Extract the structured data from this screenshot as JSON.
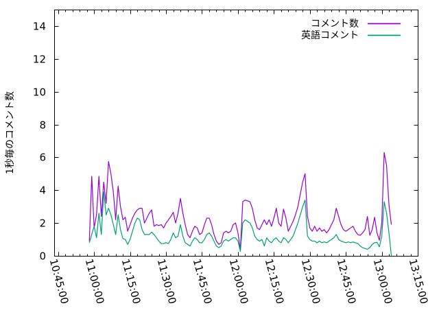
{
  "figure": {
    "background_color": "#ffffff",
    "axis_color": "#000000",
    "title": ""
  },
  "legend": {
    "position": "top-right-inside",
    "entries": [
      {
        "label": "コメント数",
        "color": "#9400d3"
      },
      {
        "label": "英語コメント",
        "color": "#009e73"
      }
    ]
  },
  "chart_data": {
    "type": "line",
    "title": "",
    "xlabel": "",
    "ylabel": "1秒毎のコメント数",
    "grid": false,
    "legend_position": "top-right-inside",
    "x_axis": {
      "range": [
        "10:43:20",
        "13:15:00"
      ],
      "tick_labels": [
        "10:45:00",
        "11:00:00",
        "11:15:00",
        "11:30:00",
        "11:45:00",
        "12:00:00",
        "12:15:00",
        "12:30:00",
        "12:45:00",
        "13:00:00",
        "13:15:00"
      ],
      "major_tick_interval_minutes": 15,
      "minor_tick_interval_minutes": 3,
      "labels_rotated_degrees": 75
    },
    "y_axis": {
      "range": [
        0,
        15
      ],
      "ticks": [
        0,
        2,
        4,
        6,
        8,
        10,
        12,
        14
      ]
    },
    "series": [
      {
        "name": "コメント数",
        "color": "#9400d3",
        "start_time": "10:58:00",
        "step_seconds": 60,
        "values": [
          0.9,
          4.85,
          1.7,
          2.5,
          4.85,
          2.4,
          4.5,
          3.2,
          5.75,
          5.0,
          3.9,
          2.2,
          4.25,
          3.0,
          2.2,
          2.35,
          1.5,
          1.9,
          2.3,
          2.6,
          2.8,
          2.9,
          2.9,
          2.0,
          2.3,
          2.6,
          2.8,
          1.8,
          1.9,
          1.85,
          1.9,
          1.7,
          2.0,
          2.2,
          2.4,
          2.65,
          2.0,
          2.6,
          3.5,
          2.6,
          1.9,
          1.3,
          1.1,
          1.5,
          1.8,
          1.7,
          1.3,
          1.4,
          1.9,
          2.3,
          2.3,
          1.9,
          1.3,
          0.9,
          0.7,
          0.8,
          1.4,
          1.5,
          1.4,
          1.5,
          1.9,
          2.0,
          1.4,
          0.38,
          3.3,
          3.4,
          3.35,
          3.3,
          2.9,
          2.2,
          1.7,
          1.6,
          1.9,
          2.2,
          1.9,
          2.2,
          1.8,
          2.3,
          2.9,
          2.0,
          1.8,
          2.85,
          2.3,
          1.5,
          1.8,
          2.1,
          2.5,
          3.0,
          3.75,
          4.5,
          5.0,
          2.4,
          1.7,
          1.5,
          1.8,
          1.5,
          1.7,
          1.5,
          1.6,
          1.4,
          1.6,
          1.9,
          2.2,
          2.9,
          2.4,
          1.9,
          1.6,
          1.5,
          1.6,
          1.7,
          1.8,
          1.5,
          1.3,
          1.25,
          1.4,
          1.6,
          2.4,
          1.25,
          1.6,
          2.35,
          1.4,
          0.95,
          2.0,
          6.3,
          5.5,
          3.1,
          1.9
        ]
      },
      {
        "name": "英語コメント",
        "color": "#009e73",
        "start_time": "10:58:00",
        "step_seconds": 60,
        "values": [
          0.8,
          1.3,
          1.8,
          1.1,
          2.6,
          1.3,
          3.9,
          2.5,
          2.9,
          2.5,
          1.9,
          1.3,
          2.5,
          1.6,
          1.05,
          1.0,
          0.7,
          1.0,
          1.5,
          2.0,
          2.3,
          2.2,
          1.6,
          1.3,
          1.3,
          1.3,
          1.45,
          1.3,
          1.1,
          0.9,
          0.75,
          0.75,
          0.8,
          0.75,
          1.0,
          1.4,
          1.1,
          1.2,
          1.9,
          1.2,
          0.8,
          0.7,
          0.6,
          0.9,
          1.1,
          1.0,
          0.8,
          0.8,
          1.0,
          1.3,
          1.4,
          1.2,
          0.9,
          0.6,
          0.5,
          0.6,
          0.9,
          1.0,
          0.9,
          1.0,
          1.1,
          1.1,
          0.9,
          0.27,
          2.0,
          2.2,
          2.1,
          2.0,
          1.7,
          1.2,
          1.0,
          0.9,
          1.0,
          0.6,
          1.1,
          0.9,
          0.8,
          1.0,
          1.1,
          0.9,
          0.8,
          1.1,
          1.0,
          0.8,
          1.0,
          1.2,
          1.6,
          2.0,
          2.5,
          3.0,
          3.4,
          1.2,
          1.0,
          0.9,
          0.9,
          0.8,
          0.9,
          0.8,
          0.85,
          0.8,
          0.9,
          1.0,
          1.1,
          1.3,
          1.0,
          0.9,
          0.85,
          0.8,
          0.85,
          0.8,
          0.85,
          0.8,
          0.75,
          0.6,
          0.5,
          0.45,
          0.4,
          0.5,
          0.7,
          0.8,
          0.82,
          0.55,
          1.2,
          3.3,
          2.6,
          1.4,
          0.0
        ]
      }
    ]
  }
}
